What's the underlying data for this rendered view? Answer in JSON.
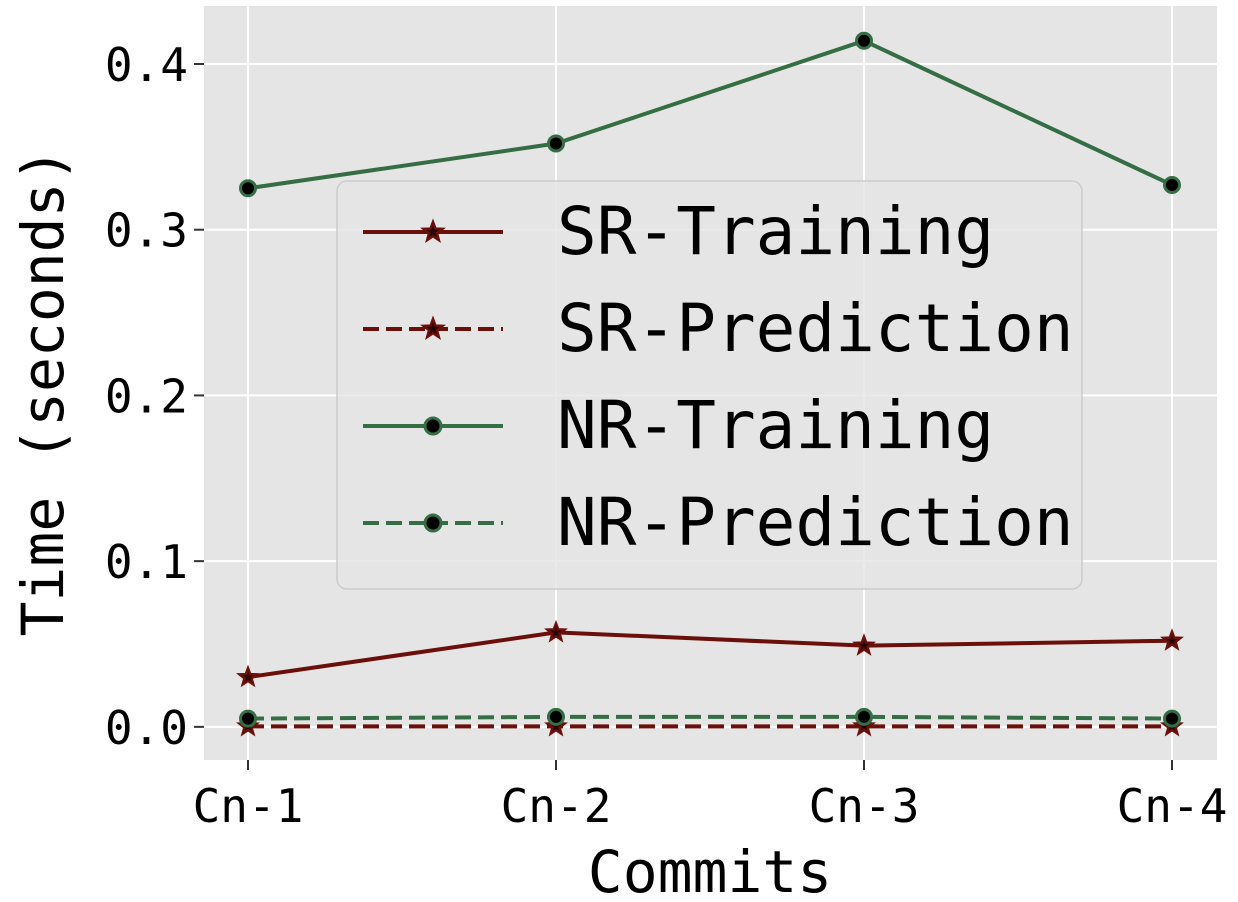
{
  "chart_data": {
    "type": "line",
    "categories": [
      "Cn-1",
      "Cn-2",
      "Cn-3",
      "Cn-4"
    ],
    "xlabel": "Commits",
    "ylabel": "Time (seconds)",
    "ylim": [
      -0.02,
      0.435
    ],
    "yticks": [
      0.0,
      0.1,
      0.2,
      0.3,
      0.4
    ],
    "ytick_labels": [
      "0.0",
      "0.1",
      "0.2",
      "0.3",
      "0.4"
    ],
    "grid": true,
    "legend_position": "center",
    "series": [
      {
        "name": "SR-Training",
        "values": [
          0.03,
          0.057,
          0.049,
          0.052
        ],
        "color": "#6b0f0a",
        "dash": "solid",
        "marker": "star"
      },
      {
        "name": "SR-Prediction",
        "values": [
          0.0003,
          0.0003,
          0.0003,
          0.0003
        ],
        "color": "#6b0f0a",
        "dash": "dashed",
        "marker": "star"
      },
      {
        "name": "NR-Training",
        "values": [
          0.325,
          0.352,
          0.414,
          0.327
        ],
        "color": "#356e45",
        "dash": "solid",
        "marker": "circle"
      },
      {
        "name": "NR-Prediction",
        "values": [
          0.005,
          0.006,
          0.006,
          0.005
        ],
        "color": "#356e45",
        "dash": "dashed",
        "marker": "circle"
      }
    ]
  }
}
